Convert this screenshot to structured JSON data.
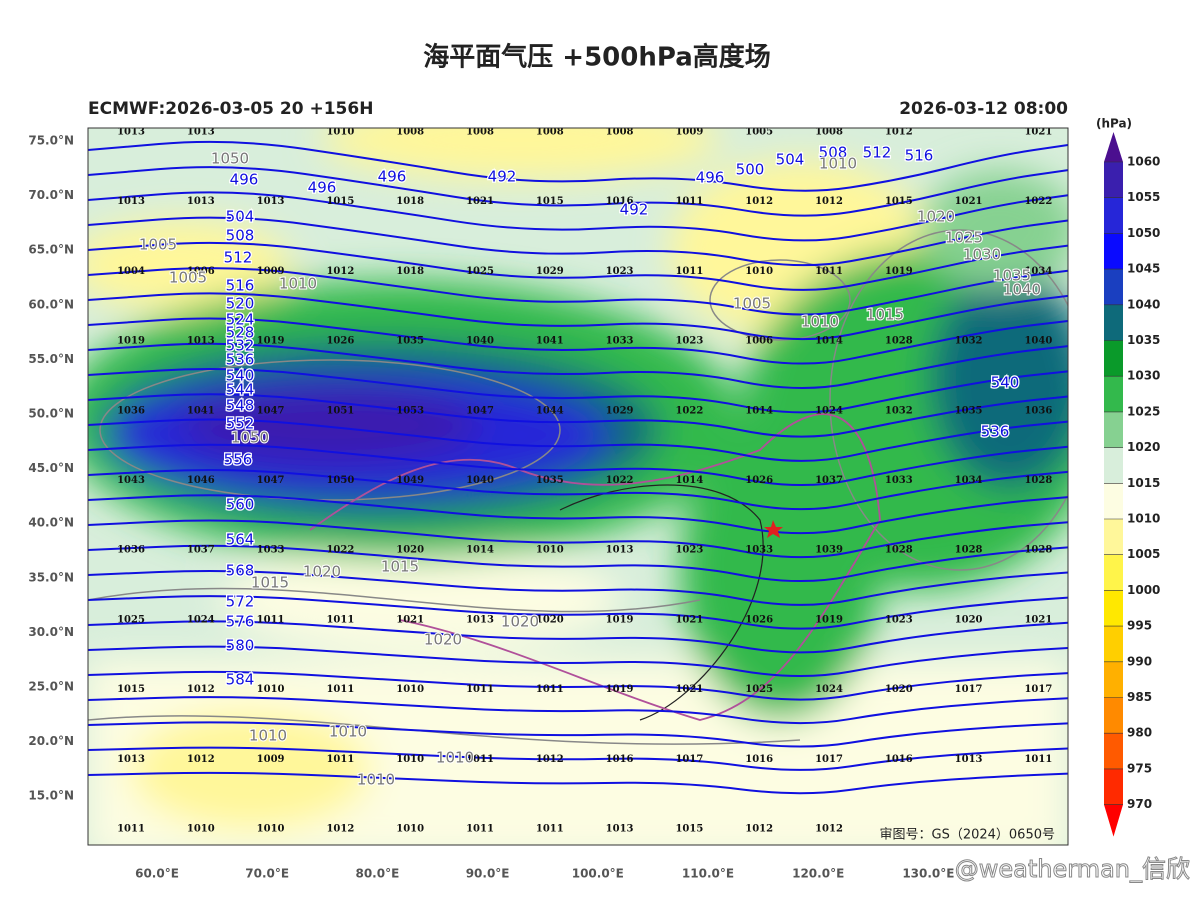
{
  "title": "海平面气压 +500hPa高度场",
  "left_subtitle": "ECMWF:2026-03-05 20 +156H",
  "right_subtitle": "2026-03-12 08:00",
  "lat_labels": [
    "75.0°N",
    "70.0°N",
    "65.0°N",
    "60.0°N",
    "55.0°N",
    "50.0°N",
    "45.0°N",
    "40.0°N",
    "35.0°N",
    "30.0°N",
    "25.0°N",
    "20.0°N",
    "15.0°N"
  ],
  "lon_labels": [
    "60.0°E",
    "70.0°E",
    "80.0°E",
    "90.0°E",
    "100.0°E",
    "110.0°E",
    "120.0°E",
    "130.0°E"
  ],
  "colorbar": {
    "unit": "(hPa)",
    "ticks": [
      1060,
      1055,
      1050,
      1045,
      1040,
      1035,
      1030,
      1025,
      1020,
      1015,
      1010,
      1005,
      1000,
      995,
      990,
      985,
      980,
      975,
      970
    ],
    "colors": [
      "#4b0f8f",
      "#3a1fae",
      "#2626d8",
      "#0a0aff",
      "#1a3fc0",
      "#0e6a7a",
      "#0a9a2a",
      "#33b94c",
      "#86d191",
      "#d8eedb",
      "#fdfde2",
      "#fff79a",
      "#fff44a",
      "#ffe800",
      "#ffcf00",
      "#ffb000",
      "#ff8a00",
      "#ff5a00",
      "#ff2a00",
      "#ff0000"
    ]
  },
  "pressure_grid": {
    "rows": [
      [
        1013,
        1013,
        null,
        1010,
        1008,
        1008,
        1008,
        1008,
        1009,
        1005,
        1008,
        1012,
        null,
        1021
      ],
      [
        1013,
        1013,
        1013,
        1015,
        1018,
        1021,
        1015,
        1016,
        1011,
        1012,
        1012,
        1015,
        1021,
        1022
      ],
      [
        1004,
        1006,
        1009,
        1012,
        1018,
        1025,
        1029,
        1023,
        1011,
        1010,
        1011,
        1019,
        null,
        1034
      ],
      [
        1019,
        1013,
        1019,
        1026,
        1035,
        1040,
        1041,
        1033,
        1023,
        1006,
        1014,
        1028,
        1032,
        1040
      ],
      [
        1036,
        1041,
        1047,
        1051,
        1053,
        1047,
        1044,
        1029,
        1022,
        1014,
        1024,
        1032,
        1035,
        1036
      ],
      [
        1043,
        1046,
        1047,
        1050,
        1049,
        1040,
        1035,
        1022,
        1014,
        1026,
        1037,
        1033,
        1034,
        1028
      ],
      [
        1036,
        1037,
        1033,
        1022,
        1020,
        1014,
        1010,
        1013,
        1023,
        1033,
        1039,
        1028,
        1028,
        1028
      ],
      [
        1025,
        1024,
        1011,
        1011,
        1021,
        1013,
        1020,
        1019,
        1021,
        1026,
        1019,
        1023,
        1020,
        1021
      ],
      [
        1015,
        1012,
        1010,
        1011,
        1010,
        1011,
        1011,
        1019,
        1021,
        1025,
        1024,
        1020,
        1017,
        1017
      ],
      [
        1013,
        1012,
        1009,
        1011,
        1010,
        1011,
        1012,
        1016,
        1017,
        1016,
        1017,
        1016,
        1013,
        1011
      ],
      [
        1011,
        1010,
        1010,
        1012,
        1010,
        1011,
        1011,
        1013,
        1015,
        1012,
        1012,
        null,
        null,
        null
      ]
    ]
  },
  "height_labels": [
    "496",
    "496",
    "496",
    "492",
    "492",
    "496",
    "500",
    "504",
    "508",
    "512",
    "516",
    "504",
    "508",
    "512",
    "516",
    "520",
    "524",
    "528",
    "532",
    "536",
    "540",
    "544",
    "548",
    "552",
    "556",
    "560",
    "564",
    "568",
    "572",
    "576",
    "580",
    "584",
    "540",
    "536"
  ],
  "isobar_labels": [
    "1050",
    "1005",
    "1005",
    "1010",
    "1005",
    "1010",
    "1015",
    "1020",
    "1025",
    "1030",
    "1035",
    "1040",
    "1010",
    "1050",
    "1020",
    "1015",
    "1015",
    "1020",
    "1020",
    "1010",
    "1010",
    "1010",
    "1010"
  ],
  "approval_note": "审图号：GS（2024）0650号",
  "watermark": "@weatherman_信欣"
}
